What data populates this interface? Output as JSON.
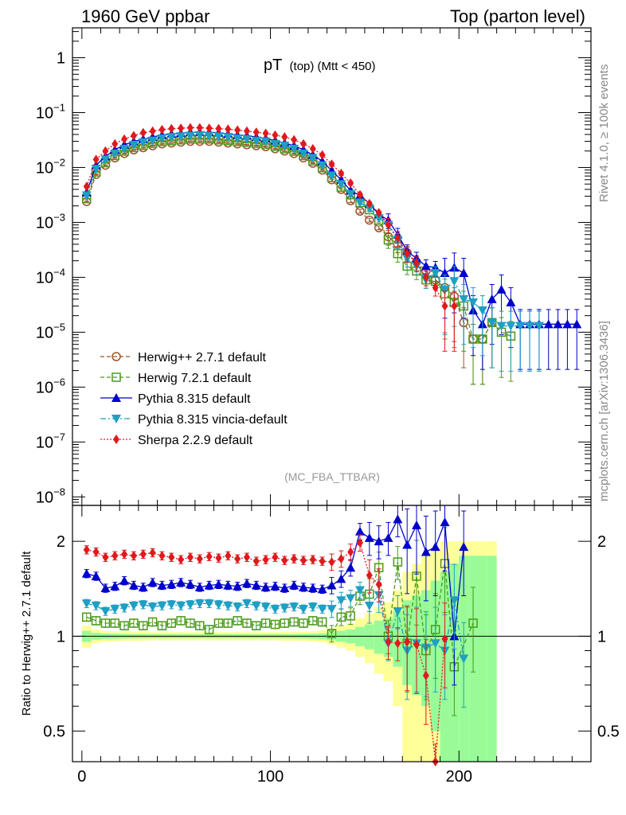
{
  "header": {
    "left": "1960 GeV ppbar",
    "right": "Top (parton level)"
  },
  "side_labels": {
    "rivet": "Rivet 4.1.0, ≥ 100k events",
    "mcplots": "mcplots.cern.ch [arXiv:1306.3436]"
  },
  "chart_data": [
    {
      "type": "line",
      "panel": "main",
      "title": "pT (top) (Mtt < 450)",
      "title_main": "pT",
      "title_sub": "(top) (Mtt < 450)",
      "watermark": "(MC_FBA_TTBAR)",
      "xlabel": "",
      "ylabel": "",
      "xlim": [
        -5,
        270
      ],
      "ylog": true,
      "ylim": [
        7e-09,
        3.5
      ],
      "ytick_labels": [
        {
          "value": 1,
          "base": "1",
          "exp": ""
        },
        {
          "value": 0.1,
          "base": "10",
          "exp": "−1"
        },
        {
          "value": 0.01,
          "base": "10",
          "exp": "−2"
        },
        {
          "value": 0.001,
          "base": "10",
          "exp": "−3"
        },
        {
          "value": 0.0001,
          "base": "10",
          "exp": "−4"
        },
        {
          "value": 1e-05,
          "base": "10",
          "exp": "−5"
        },
        {
          "value": 1e-06,
          "base": "10",
          "exp": "−6"
        },
        {
          "value": 1e-07,
          "base": "10",
          "exp": "−7"
        },
        {
          "value": 1e-08,
          "base": "10",
          "exp": "−8"
        }
      ],
      "x": [
        2.5,
        7.5,
        12.5,
        17.5,
        22.5,
        27.5,
        32.5,
        37.5,
        42.5,
        47.5,
        52.5,
        57.5,
        62.5,
        67.5,
        72.5,
        77.5,
        82.5,
        87.5,
        92.5,
        97.5,
        102.5,
        107.5,
        112.5,
        117.5,
        122.5,
        127.5,
        132.5,
        137.5,
        142.5,
        147.5,
        152.5,
        157.5,
        162.5,
        167.5,
        172.5,
        177.5,
        182.5,
        187.5,
        192.5,
        197.5,
        202.5,
        207.5,
        212.5,
        217.5,
        222.5,
        227.5,
        232.5,
        237.5,
        242.5,
        247.5,
        252.5,
        257.5,
        262.5
      ],
      "series": [
        {
          "name": "Herwig++ 2.7.1 default",
          "color": "#a0522d",
          "dash": "5,3",
          "marker": "circle-open",
          "values": [
            0.0024,
            0.0075,
            0.011,
            0.015,
            0.018,
            0.021,
            0.023,
            0.025,
            0.027,
            0.028,
            0.029,
            0.03,
            0.03,
            0.03,
            0.029,
            0.028,
            0.027,
            0.026,
            0.025,
            0.024,
            0.022,
            0.02,
            0.018,
            0.015,
            0.012,
            0.009,
            0.006,
            0.004,
            0.0025,
            0.0016,
            0.0011,
            0.0008,
            0.00055,
            0.0004,
            0.00028,
            0.00019,
            0.00013,
            9e-05,
            6.5e-05,
            4.5e-05,
            1.5e-05,
            7.5e-06,
            7.5e-06,
            1.5e-05,
            null,
            null,
            null,
            null,
            null,
            null,
            null,
            null,
            null
          ]
        },
        {
          "name": "Herwig 7.2.1 default",
          "color": "#4a9a1a",
          "dash": "5,3",
          "marker": "square-open",
          "values": [
            0.0027,
            0.0083,
            0.0122,
            0.0165,
            0.0198,
            0.0231,
            0.0253,
            0.0275,
            0.0297,
            0.0308,
            0.0319,
            0.033,
            0.033,
            0.033,
            0.0319,
            0.0308,
            0.0297,
            0.0286,
            0.0275,
            0.0264,
            0.0242,
            0.022,
            0.0198,
            0.0165,
            0.0132,
            0.0099,
            0.0066,
            0.0044,
            0.0032,
            0.0023,
            0.0017,
            0.0011,
            0.00048,
            0.00027,
            0.00016,
            0.00013,
            9e-05,
            8.5e-05,
            5e-05,
            3.5e-05,
            3e-05,
            7.5e-06,
            7.5e-06,
            1.5e-05,
            1e-05,
            8.5e-06,
            null,
            null,
            null,
            null,
            null,
            null,
            null
          ]
        },
        {
          "name": "Pythia 8.315 default",
          "color": "#0000cc",
          "dash": "",
          "marker": "triangle-up",
          "values": [
            0.0035,
            0.011,
            0.016,
            0.021,
            0.026,
            0.03,
            0.033,
            0.036,
            0.039,
            0.041,
            0.042,
            0.044,
            0.044,
            0.044,
            0.043,
            0.041,
            0.039,
            0.038,
            0.036,
            0.034,
            0.031,
            0.028,
            0.025,
            0.021,
            0.017,
            0.013,
            0.0088,
            0.006,
            0.0038,
            0.0031,
            0.0022,
            0.0014,
            0.0011,
            0.0006,
            0.0003,
            0.00022,
            0.00016,
            0.00015,
            0.00012,
            0.00015,
            0.00012,
            2.5e-05,
            1.4e-05,
            4e-05,
            6e-05,
            3.5e-05,
            1.4e-05,
            1.4e-05,
            1.4e-05,
            1.4e-05,
            1.4e-05,
            1.4e-05,
            1.4e-05
          ]
        },
        {
          "name": "Pythia 8.315 vincia-default",
          "color": "#1f9fc2",
          "dash": "7,3,2,3",
          "marker": "triangle-down",
          "values": [
            0.0031,
            0.0095,
            0.014,
            0.018,
            0.022,
            0.026,
            0.029,
            0.031,
            0.034,
            0.036,
            0.037,
            0.038,
            0.039,
            0.038,
            0.037,
            0.036,
            0.034,
            0.033,
            0.031,
            0.03,
            0.027,
            0.025,
            0.022,
            0.018,
            0.015,
            0.011,
            0.0072,
            0.005,
            0.0033,
            0.0023,
            0.0018,
            0.0012,
            0.0009,
            0.00048,
            0.00022,
            0.00016,
            9e-05,
            0.00012,
            6e-05,
            8.5e-05,
            4e-05,
            3.5e-05,
            2.5e-05,
            1.5e-05,
            1.3e-05,
            1.3e-05,
            1.3e-05,
            1.3e-05,
            1.3e-05,
            null,
            null,
            null,
            null
          ]
        },
        {
          "name": "Sherpa 2.2.9 default",
          "color": "#e0191c",
          "dash": "2,2",
          "marker": "diamond",
          "values": [
            0.0045,
            0.014,
            0.02,
            0.027,
            0.033,
            0.038,
            0.043,
            0.046,
            0.049,
            0.051,
            0.052,
            0.053,
            0.053,
            0.052,
            0.051,
            0.05,
            0.048,
            0.046,
            0.044,
            0.042,
            0.039,
            0.036,
            0.032,
            0.027,
            0.022,
            0.017,
            0.0115,
            0.0078,
            0.0052,
            0.0032,
            0.0022,
            0.0015,
            0.0009,
            0.00052,
            0.00027,
            0.00018,
            0.0001,
            6.5e-05,
            3e-05,
            3e-05,
            null,
            null,
            null,
            null,
            null,
            null,
            null,
            null,
            null,
            null,
            null,
            null,
            null
          ]
        }
      ]
    },
    {
      "type": "line",
      "panel": "ratio",
      "ylabel": "Ratio to Herwig++ 2.7.1 default",
      "xlim": [
        -5,
        270
      ],
      "ylog": true,
      "ylim": [
        0.4,
        2.6
      ],
      "ytick_labels": [
        {
          "value": 0.5,
          "text": "0.5"
        },
        {
          "value": 1,
          "text": "1"
        },
        {
          "value": 2,
          "text": "2"
        }
      ],
      "xtick_labels": [
        {
          "value": 0,
          "text": "0"
        },
        {
          "value": 100,
          "text": "100"
        },
        {
          "value": 200,
          "text": "200"
        }
      ],
      "uncertainty_bands": {
        "inner_color": "#98fb98",
        "outer_color": "#ffff99",
        "x_edges": [
          0,
          5,
          10,
          15,
          20,
          25,
          30,
          35,
          40,
          45,
          50,
          55,
          60,
          65,
          70,
          75,
          80,
          85,
          90,
          95,
          100,
          105,
          110,
          115,
          120,
          125,
          130,
          135,
          140,
          145,
          150,
          155,
          160,
          165,
          170,
          175,
          180,
          185,
          190,
          195,
          200,
          205,
          210,
          215,
          220
        ],
        "inner_half_width": [
          0.04,
          0.025,
          0.02,
          0.018,
          0.017,
          0.016,
          0.016,
          0.015,
          0.015,
          0.015,
          0.015,
          0.015,
          0.015,
          0.015,
          0.015,
          0.015,
          0.015,
          0.015,
          0.015,
          0.015,
          0.015,
          0.016,
          0.016,
          0.017,
          0.019,
          0.022,
          0.03,
          0.04,
          0.05,
          0.07,
          0.09,
          0.12,
          0.14,
          0.2,
          0.3,
          0.35,
          0.4,
          0.5,
          0.6,
          0.7,
          0.8,
          0.8,
          0.8,
          0.8
        ],
        "outer_half_width": [
          0.08,
          0.05,
          0.04,
          0.036,
          0.034,
          0.032,
          0.032,
          0.03,
          0.03,
          0.03,
          0.03,
          0.03,
          0.03,
          0.03,
          0.03,
          0.03,
          0.03,
          0.03,
          0.03,
          0.03,
          0.03,
          0.032,
          0.032,
          0.034,
          0.038,
          0.044,
          0.06,
          0.08,
          0.1,
          0.14,
          0.18,
          0.24,
          0.28,
          0.4,
          0.6,
          0.7,
          0.8,
          0.9,
          1.0,
          1.0,
          1.0,
          1.0,
          1.0,
          1.0
        ]
      },
      "series": [
        {
          "name": "Herwig 7.2.1 default",
          "color": "#4a9a1a",
          "dash": "5,3",
          "marker": "square-open",
          "values": [
            1.15,
            1.12,
            1.1,
            1.1,
            1.08,
            1.1,
            1.08,
            1.11,
            1.08,
            1.1,
            1.12,
            1.1,
            1.08,
            1.05,
            1.1,
            1.1,
            1.12,
            1.1,
            1.08,
            1.1,
            1.09,
            1.1,
            1.11,
            1.1,
            1.12,
            1.11,
            1.02,
            1.15,
            1.16,
            1.34,
            1.36,
            1.65,
            1.0,
            1.72,
            0.95,
            1.55,
            0.9,
            1.05,
            1.7,
            0.8,
            null,
            1.1,
            null
          ]
        },
        {
          "name": "Pythia 8.315 default",
          "color": "#0000cc",
          "dash": "",
          "marker": "triangle-up",
          "values": [
            1.58,
            1.55,
            1.42,
            1.44,
            1.5,
            1.45,
            1.43,
            1.48,
            1.45,
            1.46,
            1.48,
            1.46,
            1.43,
            1.45,
            1.46,
            1.45,
            1.44,
            1.47,
            1.45,
            1.43,
            1.44,
            1.42,
            1.45,
            1.43,
            1.42,
            1.41,
            1.45,
            1.52,
            1.65,
            2.15,
            2.05,
            2.0,
            2.05,
            2.35,
            1.95,
            2.25,
            1.85,
            1.92,
            2.3,
            1.0,
            1.92,
            null,
            null
          ]
        },
        {
          "name": "Pythia 8.315 vincia-default",
          "color": "#1f9fc2",
          "dash": "7,3,2,3",
          "marker": "triangle-down",
          "values": [
            1.27,
            1.25,
            1.2,
            1.22,
            1.23,
            1.25,
            1.26,
            1.24,
            1.25,
            1.26,
            1.25,
            1.26,
            1.27,
            1.27,
            1.26,
            1.25,
            1.24,
            1.27,
            1.25,
            1.24,
            1.22,
            1.23,
            1.24,
            1.22,
            1.24,
            1.22,
            1.22,
            1.3,
            1.32,
            1.4,
            1.25,
            1.35,
            0.95,
            1.2,
            0.9,
            0.95,
            0.92,
            0.95,
            0.9,
            1.3,
            0.85,
            null,
            null
          ]
        },
        {
          "name": "Sherpa 2.2.9 default",
          "color": "#e0191c",
          "dash": "2,2",
          "marker": "diamond",
          "values": [
            1.88,
            1.85,
            1.78,
            1.8,
            1.82,
            1.8,
            1.82,
            1.84,
            1.8,
            1.78,
            1.75,
            1.78,
            1.76,
            1.79,
            1.77,
            1.8,
            1.76,
            1.78,
            1.73,
            1.75,
            1.78,
            1.74,
            1.76,
            1.74,
            1.75,
            1.73,
            1.72,
            1.76,
            1.85,
            1.98,
            1.56,
            1.46,
            0.96,
            0.95,
            0.96,
            0.94,
            0.75,
            0.35,
            0.98,
            null,
            null,
            null,
            null
          ]
        }
      ]
    }
  ]
}
